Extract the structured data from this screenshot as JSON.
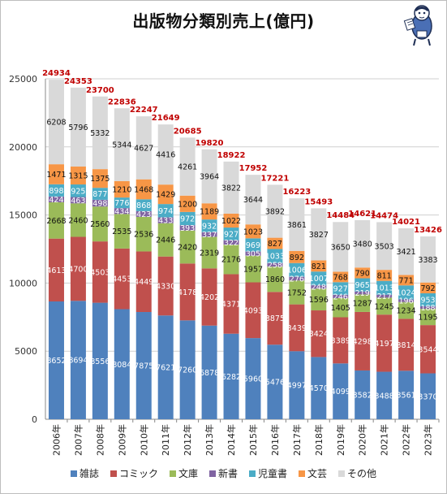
{
  "chart_data": {
    "type": "bar",
    "stacked": true,
    "title": "出版物分類別売上(億円)",
    "categories": [
      "2006年",
      "2007年",
      "2008年",
      "2009年",
      "2010年",
      "2011年",
      "2012年",
      "2013年",
      "2014年",
      "2015年",
      "2016年",
      "2017年",
      "2018年",
      "2019年",
      "2020年",
      "2021年",
      "2022年",
      "2023年"
    ],
    "series": [
      {
        "name": "雑誌",
        "color": "#4f81bd",
        "label_color": "#ffffff",
        "values": [
          8652,
          8694,
          8556,
          8084,
          7875,
          7621,
          7260,
          6878,
          6282,
          5960,
          5476,
          4997,
          4570,
          4099,
          3582,
          3488,
          3561,
          3370
        ]
      },
      {
        "name": "コミック",
        "color": "#c0504d",
        "label_color": "#ffffff",
        "values": [
          4613,
          4700,
          4503,
          4453,
          4449,
          4330,
          4178,
          4202,
          4371,
          4093,
          3875,
          3439,
          3424,
          3389,
          4298,
          4197,
          3814,
          3544
        ]
      },
      {
        "name": "文庫",
        "color": "#9bbb59",
        "label_color": "#111111",
        "values": [
          2668,
          2460,
          2560,
          2535,
          2536,
          2446,
          2420,
          2319,
          2176,
          1957,
          1860,
          1752,
          1596,
          1405,
          1287,
          1245,
          1234,
          1195
        ]
      },
      {
        "name": "新書",
        "color": "#8064a2",
        "label_color": "#ffffff",
        "values": [
          424,
          463,
          498,
          434,
          423,
          433,
          393,
          337,
          322,
          305,
          258,
          276,
          248,
          246,
          219,
          217,
          196,
          188
        ]
      },
      {
        "name": "児童書",
        "color": "#4bacc6",
        "label_color": "#ffffff",
        "values": [
          898,
          925,
          877,
          776,
          868,
          974,
          972,
          932,
          927,
          969,
          1033,
          1006,
          1007,
          927,
          965,
          1013,
          1024,
          953
        ]
      },
      {
        "name": "文芸",
        "color": "#f79646",
        "label_color": "#111111",
        "values": [
          1471,
          1315,
          1375,
          1210,
          1468,
          1429,
          1200,
          1189,
          1022,
          1023,
          827,
          892,
          821,
          768,
          790,
          811,
          771,
          792
        ]
      },
      {
        "name": "その他",
        "color": "#d9d9d9",
        "label_color": "#111111",
        "values": [
          6208,
          5796,
          5332,
          5344,
          4627,
          4416,
          4261,
          3964,
          3822,
          3644,
          3892,
          3861,
          3827,
          3650,
          3480,
          3503,
          3421,
          3383
        ]
      }
    ],
    "totals": [
      24934,
      24353,
      23700,
      22836,
      22247,
      21649,
      20685,
      19820,
      18922,
      17952,
      17221,
      16223,
      15493,
      14484,
      14621,
      14474,
      14021,
      13426
    ],
    "totals_color": "#c00000",
    "y_ticks": [
      "0",
      "5000",
      "10000",
      "15000",
      "20000",
      "25000"
    ],
    "ylim": [
      0,
      25000
    ],
    "grid": true,
    "legend_position": "bottom"
  }
}
